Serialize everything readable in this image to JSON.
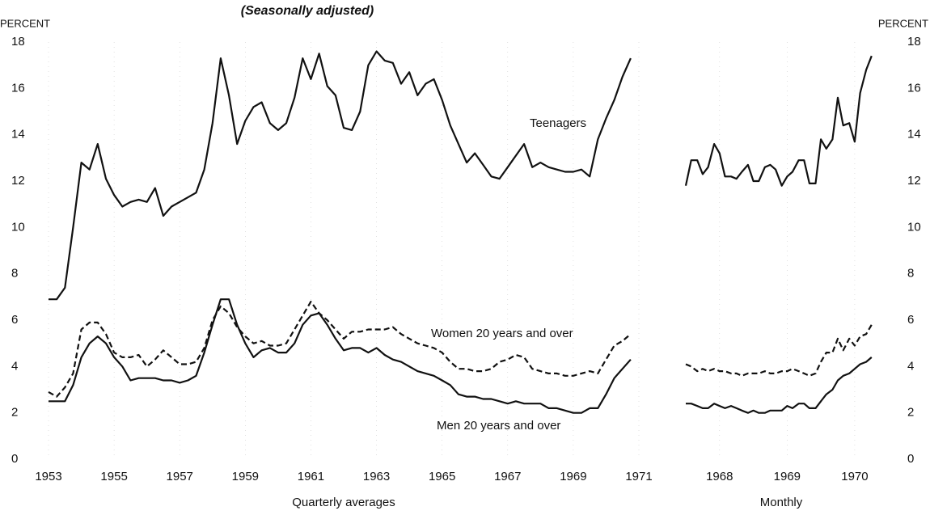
{
  "title": "(Seasonally adjusted)",
  "chart_data": [
    {
      "type": "line",
      "y_label": "PERCENT",
      "x_label": "Quarterly averages",
      "xlim": [
        1953,
        1971
      ],
      "xticks": [
        1953,
        1955,
        1957,
        1959,
        1961,
        1963,
        1965,
        1967,
        1969,
        1971
      ],
      "ylim": [
        0,
        18
      ],
      "yticks": [
        0,
        2,
        4,
        6,
        8,
        10,
        12,
        14,
        16,
        18
      ],
      "x": [
        1953,
        1953.25,
        1953.5,
        1953.75,
        1954,
        1954.25,
        1954.5,
        1954.75,
        1955,
        1955.25,
        1955.5,
        1955.75,
        1956,
        1956.25,
        1956.5,
        1956.75,
        1957,
        1957.25,
        1957.5,
        1957.75,
        1958,
        1958.25,
        1958.5,
        1958.75,
        1959,
        1959.25,
        1959.5,
        1959.75,
        1960,
        1960.25,
        1960.5,
        1960.75,
        1961,
        1961.25,
        1961.5,
        1961.75,
        1962,
        1962.25,
        1962.5,
        1962.75,
        1963,
        1963.25,
        1963.5,
        1963.75,
        1964,
        1964.25,
        1964.5,
        1964.75,
        1965,
        1965.25,
        1965.5,
        1965.75,
        1966,
        1966.25,
        1966.5,
        1966.75,
        1967,
        1967.25,
        1967.5,
        1967.75,
        1968,
        1968.25,
        1968.5,
        1968.75,
        1969,
        1969.25,
        1969.5,
        1969.75,
        1970,
        1970.25,
        1970.5,
        1970.75
      ],
      "series": [
        {
          "name": "Teenagers",
          "color": "#111111",
          "dashed": false,
          "values": [
            6.9,
            6.9,
            7.4,
            10.0,
            12.8,
            12.5,
            13.6,
            12.1,
            11.4,
            10.9,
            11.1,
            11.2,
            11.1,
            11.7,
            10.5,
            10.9,
            11.1,
            11.3,
            11.5,
            12.5,
            14.5,
            17.3,
            15.7,
            13.6,
            14.6,
            15.2,
            15.4,
            14.5,
            14.2,
            14.5,
            15.6,
            17.3,
            16.4,
            17.5,
            16.1,
            15.7,
            14.3,
            14.2,
            15.0,
            17.0,
            17.6,
            17.2,
            17.1,
            16.2,
            16.7,
            15.7,
            16.2,
            16.4,
            15.5,
            14.4,
            13.6,
            12.8,
            13.2,
            12.7,
            12.2,
            12.1,
            12.6,
            13.1,
            13.6,
            12.6,
            12.8,
            12.6,
            12.5,
            12.4,
            12.4,
            12.5,
            12.2,
            13.8,
            14.7,
            15.5,
            16.5,
            17.3
          ]
        },
        {
          "name": "Women 20 years and over",
          "color": "#111111",
          "dashed": true,
          "values": [
            2.9,
            2.7,
            3.1,
            3.7,
            5.6,
            5.9,
            5.9,
            5.4,
            4.6,
            4.4,
            4.4,
            4.5,
            4.0,
            4.3,
            4.7,
            4.4,
            4.1,
            4.1,
            4.2,
            4.8,
            6.0,
            6.6,
            6.3,
            5.7,
            5.3,
            5.0,
            5.1,
            4.9,
            4.9,
            5.0,
            5.6,
            6.2,
            6.8,
            6.3,
            6.0,
            5.6,
            5.2,
            5.5,
            5.5,
            5.6,
            5.6,
            5.6,
            5.7,
            5.4,
            5.2,
            5.0,
            4.9,
            4.8,
            4.6,
            4.2,
            3.9,
            3.9,
            3.8,
            3.8,
            3.9,
            4.2,
            4.3,
            4.5,
            4.4,
            3.9,
            3.8,
            3.7,
            3.7,
            3.6,
            3.6,
            3.7,
            3.8,
            3.7,
            4.3,
            4.9,
            5.1,
            5.4
          ]
        },
        {
          "name": "Men 20 years and over",
          "color": "#111111",
          "dashed": false,
          "values": [
            2.5,
            2.5,
            2.5,
            3.2,
            4.4,
            5.0,
            5.3,
            5.0,
            4.4,
            4.0,
            3.4,
            3.5,
            3.5,
            3.5,
            3.4,
            3.4,
            3.3,
            3.4,
            3.6,
            4.6,
            5.8,
            6.9,
            6.9,
            5.8,
            5.0,
            4.4,
            4.7,
            4.8,
            4.6,
            4.6,
            5.0,
            5.8,
            6.2,
            6.3,
            5.8,
            5.2,
            4.7,
            4.8,
            4.8,
            4.6,
            4.8,
            4.5,
            4.3,
            4.2,
            4.0,
            3.8,
            3.7,
            3.6,
            3.4,
            3.2,
            2.8,
            2.7,
            2.7,
            2.6,
            2.6,
            2.5,
            2.4,
            2.5,
            2.4,
            2.4,
            2.4,
            2.2,
            2.2,
            2.1,
            2.0,
            2.0,
            2.2,
            2.2,
            2.8,
            3.5,
            3.9,
            4.3
          ]
        }
      ]
    },
    {
      "type": "line",
      "y_label": "PERCENT",
      "x_label": "Monthly",
      "xlim": [
        1968,
        1970.8
      ],
      "xticks": [
        {
          "value": 1968.5,
          "label": "1968"
        },
        {
          "value": 1969.5,
          "label": "1969"
        },
        {
          "value": 1970.5,
          "label": "1970"
        }
      ],
      "ylim": [
        0,
        18
      ],
      "yticks": [
        0,
        2,
        4,
        6,
        8,
        10,
        12,
        14,
        16,
        18
      ],
      "x": [
        1968,
        1968.08,
        1968.17,
        1968.25,
        1968.33,
        1968.42,
        1968.5,
        1968.58,
        1968.67,
        1968.75,
        1968.83,
        1968.92,
        1969,
        1969.08,
        1969.17,
        1969.25,
        1969.33,
        1969.42,
        1969.5,
        1969.58,
        1969.67,
        1969.75,
        1969.83,
        1969.92,
        1970,
        1970.08,
        1970.17,
        1970.25,
        1970.33,
        1970.42,
        1970.5,
        1970.58,
        1970.67,
        1970.75
      ],
      "series": [
        {
          "color": "#111111",
          "dashed": false,
          "values": [
            11.8,
            12.9,
            12.9,
            12.3,
            12.6,
            13.6,
            13.2,
            12.2,
            12.2,
            12.1,
            12.4,
            12.7,
            12.0,
            12.0,
            12.6,
            12.7,
            12.5,
            11.8,
            12.2,
            12.4,
            12.9,
            12.9,
            11.9,
            11.9,
            13.8,
            13.4,
            13.8,
            15.6,
            14.4,
            14.5,
            13.7,
            15.8,
            16.8,
            17.4
          ]
        },
        {
          "color": "#111111",
          "dashed": true,
          "values": [
            4.1,
            4.0,
            3.8,
            3.9,
            3.8,
            3.9,
            3.8,
            3.8,
            3.7,
            3.7,
            3.6,
            3.7,
            3.7,
            3.7,
            3.8,
            3.7,
            3.7,
            3.8,
            3.8,
            3.9,
            3.8,
            3.7,
            3.6,
            3.7,
            4.2,
            4.6,
            4.6,
            5.2,
            4.7,
            5.2,
            4.9,
            5.3,
            5.4,
            5.8
          ]
        },
        {
          "color": "#111111",
          "dashed": false,
          "values": [
            2.4,
            2.4,
            2.3,
            2.2,
            2.2,
            2.4,
            2.3,
            2.2,
            2.3,
            2.2,
            2.1,
            2.0,
            2.1,
            2.0,
            2.0,
            2.1,
            2.1,
            2.1,
            2.3,
            2.2,
            2.4,
            2.4,
            2.2,
            2.2,
            2.5,
            2.8,
            3.0,
            3.4,
            3.6,
            3.7,
            3.9,
            4.1,
            4.2,
            4.4
          ]
        }
      ]
    }
  ]
}
